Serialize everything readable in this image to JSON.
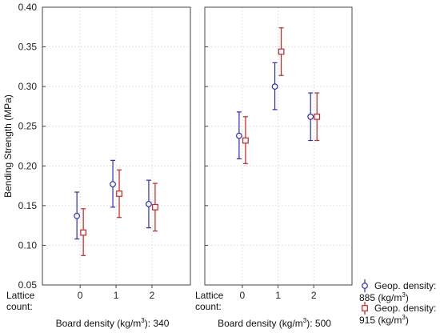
{
  "chart_data": {
    "type": "scatter",
    "ylabel": "Bending Strength (MPa)",
    "ylim": [
      0.05,
      0.4
    ],
    "yticks": [
      "0.05",
      "0.10",
      "0.15",
      "0.20",
      "0.25",
      "0.30",
      "0.35",
      "0.40"
    ],
    "x_axis_label_line1": "Lattice",
    "x_axis_label_line2": "count:",
    "categories": [
      "0",
      "1",
      "2"
    ],
    "grid": true,
    "legend_position": "right",
    "panels": [
      {
        "title_prefix": "Board density (kg/m",
        "title_sup": "3",
        "title_suffix": "): 340",
        "series": [
          {
            "name_line1": "Geop. density:",
            "name_line2_prefix": "885 (kg/m",
            "name_sup": "3",
            "name_line2_suffix": ")",
            "color": "#2b2bcc",
            "marker": "circle",
            "values": [
              0.137,
              0.177,
              0.152
            ],
            "lower": [
              0.108,
              0.148,
              0.122
            ],
            "upper": [
              0.167,
              0.207,
              0.182
            ]
          },
          {
            "name_line1": "Geop. density:",
            "name_line2_prefix": "915 (kg/m",
            "name_sup": "3",
            "name_line2_suffix": ")",
            "color": "#d42020",
            "marker": "square",
            "values": [
              0.116,
              0.165,
              0.148
            ],
            "lower": [
              0.087,
              0.135,
              0.118
            ],
            "upper": [
              0.146,
              0.195,
              0.178
            ]
          }
        ]
      },
      {
        "title_prefix": "Board density (kg/m",
        "title_sup": "3",
        "title_suffix": "): 500",
        "series": [
          {
            "name_line1": "Geop. density:",
            "name_line2_prefix": "885 (kg/m",
            "name_sup": "3",
            "name_line2_suffix": ")",
            "color": "#2b2bcc",
            "marker": "circle",
            "values": [
              0.238,
              0.3,
              0.262
            ],
            "lower": [
              0.209,
              0.271,
              0.232
            ],
            "upper": [
              0.268,
              0.33,
              0.292
            ]
          },
          {
            "name_line1": "Geop. density:",
            "name_line2_prefix": "915 (kg/m",
            "name_sup": "3",
            "name_line2_suffix": ")",
            "color": "#d42020",
            "marker": "square",
            "values": [
              0.232,
              0.344,
              0.262
            ],
            "lower": [
              0.203,
              0.314,
              0.232
            ],
            "upper": [
              0.262,
              0.374,
              0.292
            ]
          }
        ]
      }
    ]
  }
}
